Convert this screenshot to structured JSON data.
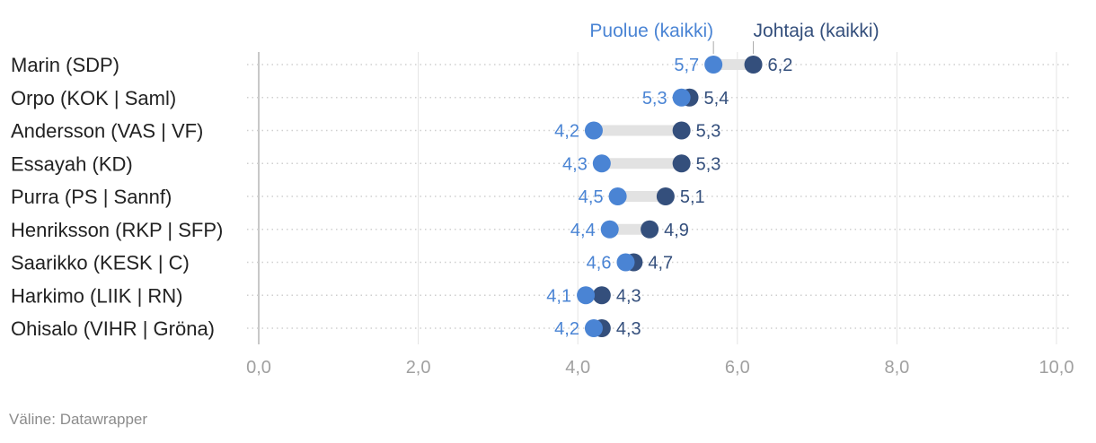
{
  "chart_data": {
    "type": "dot",
    "categories": [
      "Marin (SDP)",
      "Orpo (KOK | Saml)",
      "Andersson (VAS | VF)",
      "Essayah (KD)",
      "Purra (PS | Sannf)",
      "Henriksson (RKP | SFP)",
      "Saarikko (KESK | C)",
      "Harkimo (LIIK | RN)",
      "Ohisalo (VIHR | Gröna)"
    ],
    "series": [
      {
        "name": "Puolue (kaikki)",
        "color": "#4a84d4",
        "values": [
          5.7,
          5.3,
          4.2,
          4.3,
          4.5,
          4.4,
          4.6,
          4.1,
          4.2
        ],
        "labels": [
          "5,7",
          "5,3",
          "4,2",
          "4,3",
          "4,5",
          "4,4",
          "4,6",
          "4,1",
          "4,2"
        ]
      },
      {
        "name": "Johtaja (kaikki)",
        "color": "#344f7c",
        "values": [
          6.2,
          5.4,
          5.3,
          5.3,
          5.1,
          4.9,
          4.7,
          4.3,
          4.3
        ],
        "labels": [
          "6,2",
          "5,4",
          "5,3",
          "5,3",
          "5,1",
          "4,9",
          "4,7",
          "4,3",
          "4,3"
        ]
      }
    ],
    "xlim": [
      0,
      10
    ],
    "xticks": [
      0,
      2,
      4,
      6,
      8,
      10
    ],
    "xtick_labels": [
      "0,0",
      "2,0",
      "4,0",
      "6,0",
      "8,0",
      "10,0"
    ],
    "legend_placement": "top, above first row",
    "grid": true
  },
  "source": "Väline: Datawrapper"
}
